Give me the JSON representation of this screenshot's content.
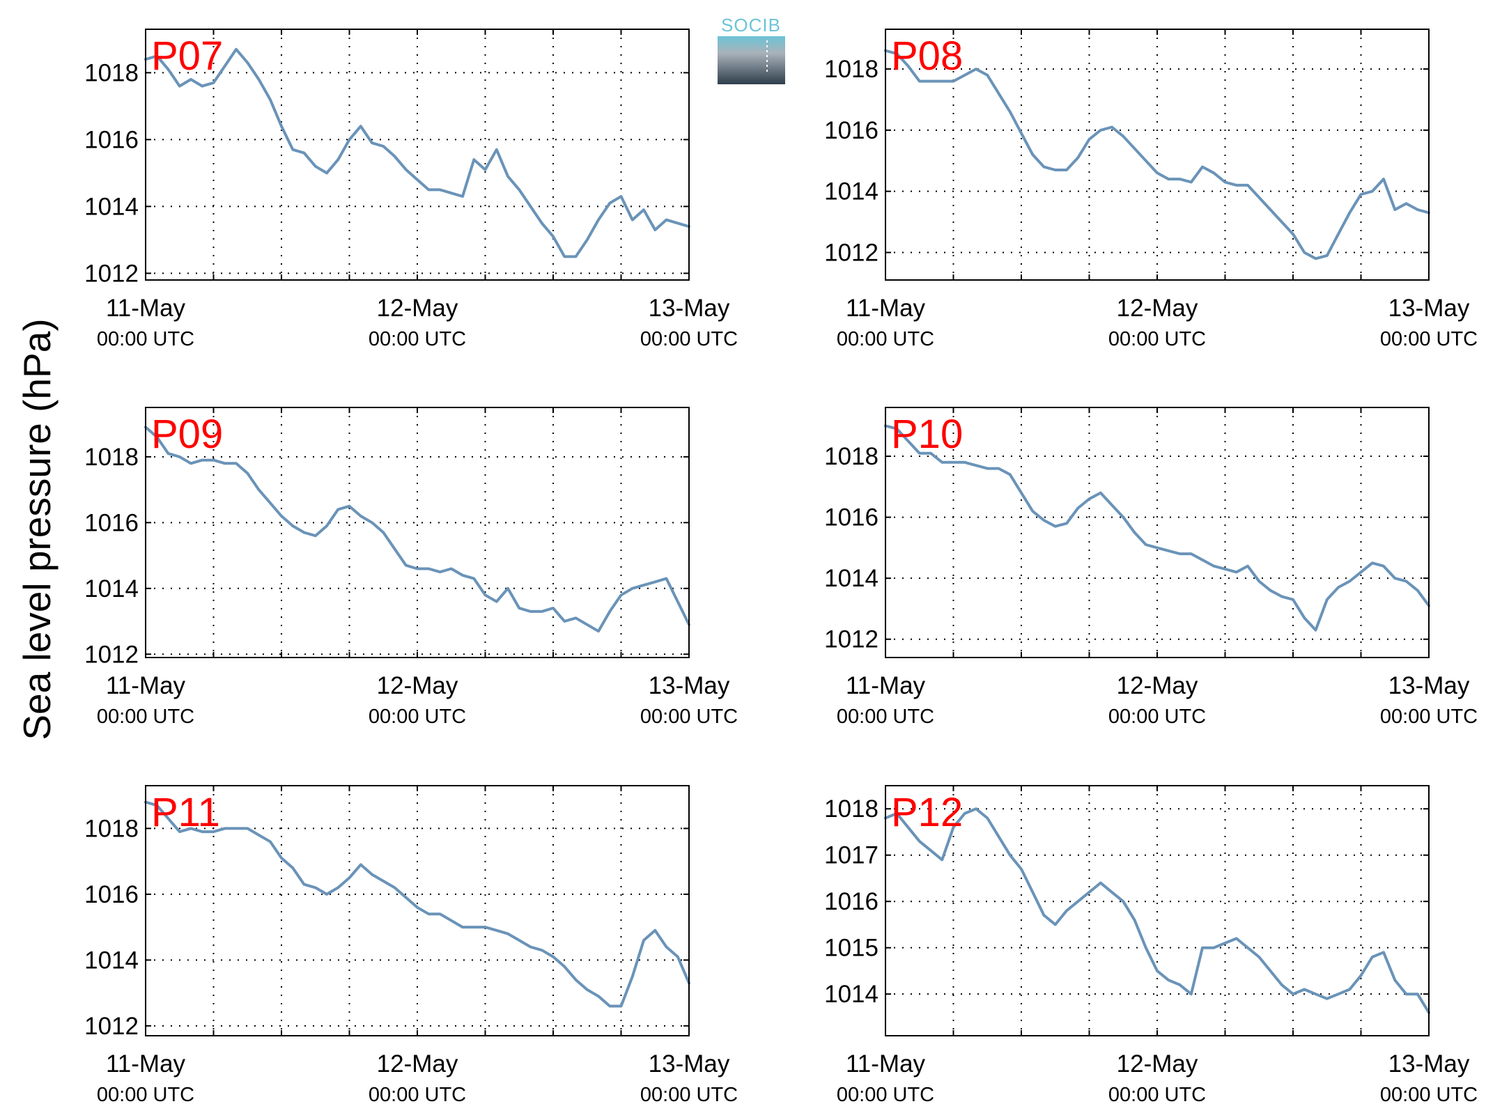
{
  "figure": {
    "ylabel": "Sea level pressure (hPa)",
    "logo": {
      "text": "SOCIB"
    },
    "colors": {
      "line": "#6a93b8",
      "panel_label": "#ff0000",
      "grid": "#000000",
      "axes": "#000000"
    }
  },
  "chart_data": [
    {
      "type": "line",
      "panel": "P07",
      "x_ticks": [
        {
          "date": "11-May",
          "time": "00:00 UTC"
        },
        {
          "date": "12-May",
          "time": "00:00 UTC"
        },
        {
          "date": "13-May",
          "time": "00:00 UTC"
        }
      ],
      "xlim_hours": [
        0,
        48
      ],
      "ylim": [
        1011.8,
        1019.3
      ],
      "yticks": [
        1012,
        1014,
        1016,
        1018
      ],
      "grid": true,
      "x_hours": [
        0,
        1,
        2,
        3,
        4,
        5,
        6,
        7,
        8,
        9,
        10,
        11,
        12,
        13,
        14,
        15,
        16,
        17,
        18,
        19,
        20,
        21,
        22,
        23,
        24,
        25,
        26,
        27,
        28,
        29,
        30,
        31,
        32,
        33,
        34,
        35,
        36,
        37,
        38,
        39,
        40,
        41,
        42,
        43,
        44,
        45,
        46,
        47,
        48
      ],
      "values": [
        1018.4,
        1018.5,
        1018.1,
        1017.6,
        1017.8,
        1017.6,
        1017.7,
        1018.2,
        1018.7,
        1018.3,
        1017.8,
        1017.2,
        1016.4,
        1015.7,
        1015.6,
        1015.2,
        1015.0,
        1015.4,
        1016.0,
        1016.4,
        1015.9,
        1015.8,
        1015.5,
        1015.1,
        1014.8,
        1014.5,
        1014.5,
        1014.4,
        1014.3,
        1015.4,
        1015.1,
        1015.7,
        1014.9,
        1014.5,
        1014.0,
        1013.5,
        1013.1,
        1012.5,
        1012.5,
        1013.0,
        1013.6,
        1014.1,
        1014.3,
        1013.6,
        1013.9,
        1013.3,
        1013.6,
        1013.5,
        1013.4
      ]
    },
    {
      "type": "line",
      "panel": "P08",
      "x_ticks": [
        {
          "date": "11-May",
          "time": "00:00 UTC"
        },
        {
          "date": "12-May",
          "time": "00:00 UTC"
        },
        {
          "date": "13-May",
          "time": "00:00 UTC"
        }
      ],
      "xlim_hours": [
        0,
        48
      ],
      "ylim": [
        1011.1,
        1019.3
      ],
      "yticks": [
        1012,
        1014,
        1016,
        1018
      ],
      "grid": true,
      "x_hours": [
        0,
        1,
        2,
        3,
        4,
        5,
        6,
        7,
        8,
        9,
        10,
        11,
        12,
        13,
        14,
        15,
        16,
        17,
        18,
        19,
        20,
        21,
        22,
        23,
        24,
        25,
        26,
        27,
        28,
        29,
        30,
        31,
        32,
        33,
        34,
        35,
        36,
        37,
        38,
        39,
        40,
        41,
        42,
        43,
        44,
        45,
        46,
        47,
        48
      ],
      "values": [
        1018.6,
        1018.5,
        1018.1,
        1017.6,
        1017.6,
        1017.6,
        1017.6,
        1017.8,
        1018.0,
        1017.8,
        1017.2,
        1016.6,
        1015.9,
        1015.2,
        1014.8,
        1014.7,
        1014.7,
        1015.1,
        1015.7,
        1016.0,
        1016.1,
        1015.8,
        1015.4,
        1015.0,
        1014.6,
        1014.4,
        1014.4,
        1014.3,
        1014.8,
        1014.6,
        1014.3,
        1014.2,
        1014.2,
        1013.8,
        1013.4,
        1013.0,
        1012.6,
        1012.0,
        1011.8,
        1011.9,
        1012.6,
        1013.3,
        1013.9,
        1014.0,
        1014.4,
        1013.4,
        1013.6,
        1013.4,
        1013.3
      ]
    },
    {
      "type": "line",
      "panel": "P09",
      "x_ticks": [
        {
          "date": "11-May",
          "time": "00:00 UTC"
        },
        {
          "date": "12-May",
          "time": "00:00 UTC"
        },
        {
          "date": "13-May",
          "time": "00:00 UTC"
        }
      ],
      "xlim_hours": [
        0,
        48
      ],
      "ylim": [
        1011.9,
        1019.5
      ],
      "yticks": [
        1012,
        1014,
        1016,
        1018
      ],
      "grid": true,
      "x_hours": [
        0,
        1,
        2,
        3,
        4,
        5,
        6,
        7,
        8,
        9,
        10,
        11,
        12,
        13,
        14,
        15,
        16,
        17,
        18,
        19,
        20,
        21,
        22,
        23,
        24,
        25,
        26,
        27,
        28,
        29,
        30,
        31,
        32,
        33,
        34,
        35,
        36,
        37,
        38,
        39,
        40,
        41,
        42,
        43,
        44,
        45,
        46,
        47,
        48
      ],
      "values": [
        1018.9,
        1018.6,
        1018.1,
        1018.0,
        1017.8,
        1017.9,
        1017.9,
        1017.8,
        1017.8,
        1017.5,
        1017.0,
        1016.6,
        1016.2,
        1015.9,
        1015.7,
        1015.6,
        1015.9,
        1016.4,
        1016.5,
        1016.2,
        1016.0,
        1015.7,
        1015.2,
        1014.7,
        1014.6,
        1014.6,
        1014.5,
        1014.6,
        1014.4,
        1014.3,
        1013.8,
        1013.6,
        1014.0,
        1013.4,
        1013.3,
        1013.3,
        1013.4,
        1013.0,
        1013.1,
        1012.9,
        1012.7,
        1013.3,
        1013.8,
        1014.0,
        1014.1,
        1014.2,
        1014.3,
        1013.6,
        1012.9
      ]
    },
    {
      "type": "line",
      "panel": "P10",
      "x_ticks": [
        {
          "date": "11-May",
          "time": "00:00 UTC"
        },
        {
          "date": "12-May",
          "time": "00:00 UTC"
        },
        {
          "date": "13-May",
          "time": "00:00 UTC"
        }
      ],
      "xlim_hours": [
        0,
        48
      ],
      "ylim": [
        1011.4,
        1019.6
      ],
      "yticks": [
        1012,
        1014,
        1016,
        1018
      ],
      "grid": true,
      "x_hours": [
        0,
        1,
        2,
        3,
        4,
        5,
        6,
        7,
        8,
        9,
        10,
        11,
        12,
        13,
        14,
        15,
        16,
        17,
        18,
        19,
        20,
        21,
        22,
        23,
        24,
        25,
        26,
        27,
        28,
        29,
        30,
        31,
        32,
        33,
        34,
        35,
        36,
        37,
        38,
        39,
        40,
        41,
        42,
        43,
        44,
        45,
        46,
        47,
        48
      ],
      "values": [
        1019.0,
        1018.9,
        1018.5,
        1018.1,
        1018.1,
        1017.8,
        1017.8,
        1017.8,
        1017.7,
        1017.6,
        1017.6,
        1017.4,
        1016.8,
        1016.2,
        1015.9,
        1015.7,
        1015.8,
        1016.3,
        1016.6,
        1016.8,
        1016.4,
        1016.0,
        1015.5,
        1015.1,
        1015.0,
        1014.9,
        1014.8,
        1014.8,
        1014.6,
        1014.4,
        1014.3,
        1014.2,
        1014.4,
        1013.9,
        1013.6,
        1013.4,
        1013.3,
        1012.7,
        1012.3,
        1013.3,
        1013.7,
        1013.9,
        1014.2,
        1014.5,
        1014.4,
        1014.0,
        1013.9,
        1013.6,
        1013.1
      ]
    },
    {
      "type": "line",
      "panel": "P11",
      "x_ticks": [
        {
          "date": "11-May",
          "time": "00:00 UTC"
        },
        {
          "date": "12-May",
          "time": "00:00 UTC"
        },
        {
          "date": "13-May",
          "time": "00:00 UTC"
        }
      ],
      "xlim_hours": [
        0,
        48
      ],
      "ylim": [
        1011.7,
        1019.3
      ],
      "yticks": [
        1012,
        1014,
        1016,
        1018
      ],
      "grid": true,
      "x_hours": [
        0,
        1,
        2,
        3,
        4,
        5,
        6,
        7,
        8,
        9,
        10,
        11,
        12,
        13,
        14,
        15,
        16,
        17,
        18,
        19,
        20,
        21,
        22,
        23,
        24,
        25,
        26,
        27,
        28,
        29,
        30,
        31,
        32,
        33,
        34,
        35,
        36,
        37,
        38,
        39,
        40,
        41,
        42,
        43,
        44,
        45,
        46,
        47,
        48
      ],
      "values": [
        1018.8,
        1018.7,
        1018.3,
        1017.9,
        1018.0,
        1017.9,
        1017.9,
        1018.0,
        1018.0,
        1018.0,
        1017.8,
        1017.6,
        1017.1,
        1016.8,
        1016.3,
        1016.2,
        1016.0,
        1016.2,
        1016.5,
        1016.9,
        1016.6,
        1016.4,
        1016.2,
        1015.9,
        1015.6,
        1015.4,
        1015.4,
        1015.2,
        1015.0,
        1015.0,
        1015.0,
        1014.9,
        1014.8,
        1014.6,
        1014.4,
        1014.3,
        1014.1,
        1013.8,
        1013.4,
        1013.1,
        1012.9,
        1012.6,
        1012.6,
        1013.5,
        1014.6,
        1014.9,
        1014.4,
        1014.1,
        1013.3
      ]
    },
    {
      "type": "line",
      "panel": "P12",
      "x_ticks": [
        {
          "date": "11-May",
          "time": "00:00 UTC"
        },
        {
          "date": "12-May",
          "time": "00:00 UTC"
        },
        {
          "date": "13-May",
          "time": "00:00 UTC"
        }
      ],
      "xlim_hours": [
        0,
        48
      ],
      "ylim": [
        1013.1,
        1018.5
      ],
      "yticks": [
        1014,
        1015,
        1016,
        1017,
        1018
      ],
      "grid": true,
      "x_hours": [
        0,
        1,
        2,
        3,
        4,
        5,
        6,
        7,
        8,
        9,
        10,
        11,
        12,
        13,
        14,
        15,
        16,
        17,
        18,
        19,
        20,
        21,
        22,
        23,
        24,
        25,
        26,
        27,
        28,
        29,
        30,
        31,
        32,
        33,
        34,
        35,
        36,
        37,
        38,
        39,
        40,
        41,
        42,
        43,
        44,
        45,
        46,
        47,
        48
      ],
      "values": [
        1017.8,
        1017.9,
        1017.6,
        1017.3,
        1017.1,
        1016.9,
        1017.6,
        1017.9,
        1018.0,
        1017.8,
        1017.4,
        1017.0,
        1016.7,
        1016.2,
        1015.7,
        1015.5,
        1015.8,
        1016.0,
        1016.2,
        1016.4,
        1016.2,
        1016.0,
        1015.6,
        1015.0,
        1014.5,
        1014.3,
        1014.2,
        1014.0,
        1015.0,
        1015.0,
        1015.1,
        1015.2,
        1015.0,
        1014.8,
        1014.5,
        1014.2,
        1014.0,
        1014.1,
        1014.0,
        1013.9,
        1014.0,
        1014.1,
        1014.4,
        1014.8,
        1014.9,
        1014.3,
        1014.0,
        1014.0,
        1013.6
      ]
    }
  ]
}
